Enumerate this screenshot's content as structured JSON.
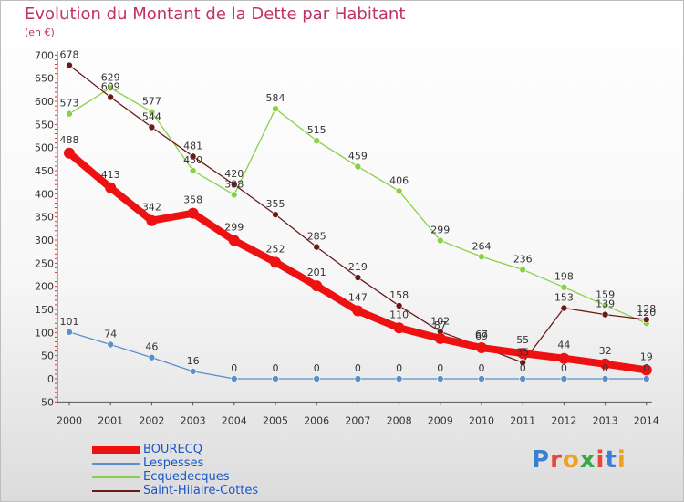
{
  "title": "Evolution du Montant de la Dette par Habitant",
  "unit": "(en €)",
  "logo_text": "Proxiti",
  "chart_data": {
    "type": "line",
    "x": [
      2000,
      2001,
      2002,
      2003,
      2004,
      2005,
      2006,
      2007,
      2008,
      2009,
      2010,
      2011,
      2012,
      2013,
      2014
    ],
    "y_ticks": [
      -50,
      0,
      50,
      100,
      150,
      200,
      250,
      300,
      350,
      400,
      450,
      500,
      550,
      600,
      650,
      700
    ],
    "ylim": [
      -50,
      700
    ],
    "grid": false,
    "legend_position": "bottom-left",
    "series": [
      {
        "name": "BOURECQ",
        "color": "#ee1111",
        "values": [
          488,
          413,
          342,
          358,
          299,
          252,
          201,
          147,
          110,
          87,
          67,
          55,
          44,
          32,
          19
        ]
      },
      {
        "name": "Lespesses",
        "color": "#5b8fc9",
        "values": [
          101,
          74,
          46,
          16,
          0,
          0,
          0,
          0,
          0,
          0,
          0,
          0,
          0,
          0,
          0
        ]
      },
      {
        "name": "Ecquedecques",
        "color": "#88d147",
        "values": [
          573,
          629,
          577,
          450,
          398,
          584,
          515,
          459,
          406,
          299,
          264,
          236,
          198,
          159,
          120
        ]
      },
      {
        "name": "Saint-Hilaire-Cottes",
        "color": "#6b1a1a",
        "values": [
          678,
          609,
          544,
          481,
          420,
          355,
          285,
          219,
          158,
          102,
          69,
          35,
          153,
          139,
          128
        ]
      }
    ]
  }
}
